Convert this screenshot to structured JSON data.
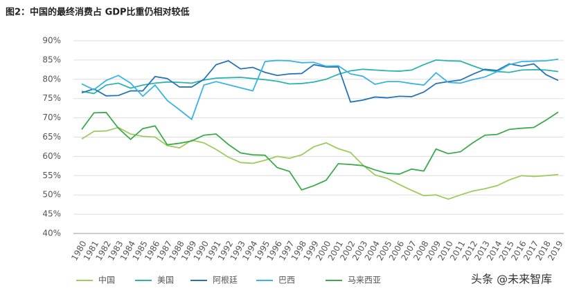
{
  "chart_data": {
    "type": "line",
    "title": "图2：中国的最终消费占 GDP比重仍相对较低",
    "watermark": "头条 @未来智库",
    "categories": [
      "1980",
      "1981",
      "1982",
      "1983",
      "1984",
      "1985",
      "1986",
      "1987",
      "1988",
      "1989",
      "1990",
      "1991",
      "1992",
      "1993",
      "1994",
      "1995",
      "1996",
      "1997",
      "1998",
      "1999",
      "2000",
      "2001",
      "2002",
      "2003",
      "2004",
      "2005",
      "2006",
      "2007",
      "2008",
      "2009",
      "2010",
      "2011",
      "2012",
      "2013",
      "2014",
      "2015",
      "2016",
      "2017",
      "2018",
      "2019"
    ],
    "ylim": [
      40,
      90
    ],
    "yticks": [
      {
        "value": 40,
        "label": "40%"
      },
      {
        "value": 45,
        "label": "45%"
      },
      {
        "value": 50,
        "label": "50%"
      },
      {
        "value": 55,
        "label": "55%"
      },
      {
        "value": 60,
        "label": "60%"
      },
      {
        "value": 65,
        "label": "65%"
      },
      {
        "value": 70,
        "label": "70%"
      },
      {
        "value": 75,
        "label": "75%"
      },
      {
        "value": 80,
        "label": "80%"
      },
      {
        "value": 85,
        "label": "85%"
      },
      {
        "value": 90,
        "label": "90%"
      }
    ],
    "grid": true,
    "legend": "bottom",
    "series": [
      {
        "name": "中国",
        "color": "#9ccc5a",
        "values": [
          64.5,
          66.5,
          66.6,
          67.5,
          65.8,
          65.2,
          65,
          62.8,
          62.2,
          64.2,
          63.5,
          61.8,
          59.8,
          58.4,
          58.2,
          59,
          60,
          59.5,
          60.4,
          62.5,
          63.5,
          62,
          61,
          57.8,
          55.2,
          54.3,
          52.7,
          51.2,
          49.8,
          50,
          48.9,
          50,
          51,
          51.6,
          52.4,
          53.9,
          55,
          54.8,
          55,
          55.3
        ]
      },
      {
        "name": "美国",
        "color": "#2ab3ae",
        "values": [
          76.9,
          76.3,
          78.5,
          79,
          77.7,
          78.5,
          79,
          79.3,
          79.2,
          79,
          79.8,
          80.3,
          80.4,
          80.5,
          80.2,
          79.9,
          79.5,
          78.8,
          78.9,
          79.3,
          80,
          81.3,
          82.2,
          82.6,
          82.4,
          82.2,
          82.1,
          82.4,
          83.8,
          85,
          84.8,
          84.7,
          83.5,
          82.4,
          82,
          81.8,
          82.4,
          82.5,
          82.4,
          82
        ]
      },
      {
        "name": "阿根廷",
        "color": "#2474b5",
        "values": [
          76.5,
          77.5,
          75.7,
          75.8,
          77,
          77,
          80.7,
          80.2,
          78,
          78,
          80,
          83.8,
          84.8,
          82.7,
          83.1,
          81.8,
          81,
          81.4,
          81.5,
          83.8,
          83.2,
          83.2,
          74.1,
          74.6,
          75.4,
          75.2,
          75.6,
          75.5,
          76.7,
          78.9,
          79.4,
          79.8,
          81.3,
          82.6,
          82.3,
          84,
          83.4,
          84,
          81.2,
          79.7
        ]
      },
      {
        "name": "巴西",
        "color": "#38b3e6",
        "values": [
          78.8,
          77.3,
          79.7,
          81,
          79,
          75.6,
          78.5,
          74.5,
          72.1,
          69.6,
          78.5,
          79.4,
          78.6,
          77.8,
          77,
          84.6,
          84.9,
          84.8,
          84.3,
          84.4,
          83.4,
          83.5,
          81.4,
          80.8,
          78.7,
          79.4,
          79.4,
          78.9,
          78.5,
          81.7,
          79.2,
          79,
          79.9,
          80.6,
          82,
          83.8,
          84.6,
          84.7,
          84.8,
          85.2
        ]
      },
      {
        "name": "马来西亚",
        "color": "#3aaa4b",
        "values": [
          67,
          71.3,
          71.4,
          67.3,
          64.4,
          67.2,
          67.9,
          63,
          63.4,
          64,
          65.5,
          65.8,
          63.1,
          60.9,
          60.4,
          60.3,
          57.1,
          56.1,
          51.3,
          52.4,
          53.8,
          58.1,
          57.9,
          57.6,
          56.5,
          55.6,
          55.4,
          56.7,
          56.2,
          61.9,
          60.7,
          61.2,
          63.5,
          65.5,
          65.7,
          67,
          67.3,
          67.5,
          69.4,
          71.5
        ]
      }
    ]
  }
}
